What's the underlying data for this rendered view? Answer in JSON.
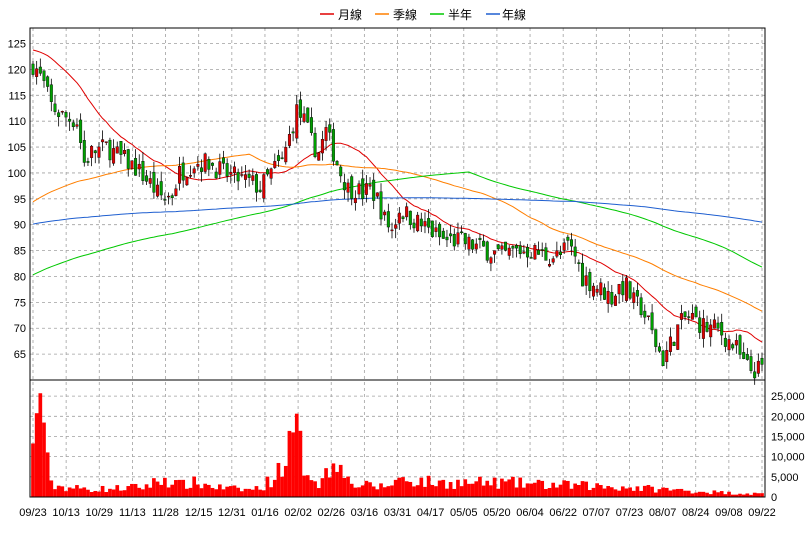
{
  "chart_data": {
    "type": "candlestick",
    "title": "",
    "legend": {
      "placement": "top-center",
      "items": [
        {
          "label": "月線",
          "color": "#e00000"
        },
        {
          "label": "季線",
          "color": "#ff7f00"
        },
        {
          "label": "半年",
          "color": "#00c800"
        },
        {
          "label": "年線",
          "color": "#1f5fd0"
        }
      ]
    },
    "price_axis": {
      "position": "left",
      "ylim": [
        60,
        128
      ],
      "ticks": [
        65,
        70,
        75,
        80,
        85,
        90,
        95,
        100,
        105,
        110,
        115,
        120,
        125
      ]
    },
    "volume_axis": {
      "position": "right",
      "ylim": [
        0,
        29000
      ],
      "ticks": [
        0,
        5000,
        10000,
        15000,
        20000,
        25000
      ],
      "tick_labels": [
        "0",
        "5,000",
        "10,000",
        "15,000",
        "20,000",
        "25,000"
      ]
    },
    "x_tick_labels": [
      "09/23",
      "10/13",
      "10/29",
      "11/13",
      "11/28",
      "12/15",
      "12/31",
      "01/16",
      "02/02",
      "02/26",
      "03/16",
      "03/31",
      "04/17",
      "05/05",
      "05/20",
      "06/04",
      "06/22",
      "07/07",
      "07/23",
      "08/07",
      "08/24",
      "09/08",
      "09/22"
    ],
    "grid": true,
    "colors": {
      "up": "#e00000",
      "down": "#00a000",
      "volume": "#ff0000",
      "grid": "#a0a0a0"
    },
    "price_anchors": [
      [
        0,
        121
      ],
      [
        1,
        120
      ],
      [
        3,
        117
      ],
      [
        5,
        113
      ],
      [
        8,
        111
      ],
      [
        12,
        110
      ],
      [
        14,
        102
      ],
      [
        16,
        104
      ],
      [
        20,
        105
      ],
      [
        24,
        103
      ],
      [
        28,
        101
      ],
      [
        32,
        98
      ],
      [
        34,
        96
      ],
      [
        36,
        95
      ],
      [
        38,
        96
      ],
      [
        40,
        100
      ],
      [
        44,
        102
      ],
      [
        48,
        102
      ],
      [
        52,
        100
      ],
      [
        56,
        99
      ],
      [
        60,
        98
      ],
      [
        62,
        97
      ],
      [
        66,
        101
      ],
      [
        68,
        102
      ],
      [
        70,
        107
      ],
      [
        72,
        112
      ],
      [
        74,
        110
      ],
      [
        76,
        106
      ],
      [
        78,
        104
      ],
      [
        80,
        108
      ],
      [
        82,
        104
      ],
      [
        84,
        100
      ],
      [
        86,
        97
      ],
      [
        88,
        97
      ],
      [
        90,
        96
      ],
      [
        92,
        97
      ],
      [
        94,
        95
      ],
      [
        96,
        91
      ],
      [
        98,
        89
      ],
      [
        100,
        93
      ],
      [
        104,
        91
      ],
      [
        108,
        89
      ],
      [
        112,
        87
      ],
      [
        116,
        87
      ],
      [
        120,
        86
      ],
      [
        124,
        85
      ],
      [
        128,
        84
      ],
      [
        132,
        85
      ],
      [
        136,
        85
      ],
      [
        140,
        84
      ],
      [
        144,
        84
      ],
      [
        146,
        86
      ],
      [
        148,
        84
      ],
      [
        150,
        80
      ],
      [
        152,
        79
      ],
      [
        154,
        78
      ],
      [
        156,
        77
      ],
      [
        158,
        76
      ],
      [
        160,
        78
      ],
      [
        162,
        78
      ],
      [
        164,
        75
      ],
      [
        166,
        74
      ],
      [
        168,
        71
      ],
      [
        170,
        67
      ],
      [
        172,
        64
      ],
      [
        174,
        67
      ],
      [
        176,
        70
      ],
      [
        178,
        72
      ],
      [
        180,
        72
      ],
      [
        184,
        70
      ],
      [
        186,
        70
      ],
      [
        188,
        69
      ],
      [
        192,
        66
      ],
      [
        194,
        63
      ],
      [
        196,
        62
      ],
      [
        198,
        62
      ]
    ],
    "volume_anchors": [
      [
        0,
        11000
      ],
      [
        2,
        29000
      ],
      [
        3,
        19000
      ],
      [
        4,
        8000
      ],
      [
        5,
        3000
      ],
      [
        8,
        2500
      ],
      [
        14,
        2000
      ],
      [
        20,
        2000
      ],
      [
        30,
        2500
      ],
      [
        36,
        4500
      ],
      [
        40,
        3000
      ],
      [
        44,
        3500
      ],
      [
        52,
        2200
      ],
      [
        58,
        1800
      ],
      [
        62,
        2200
      ],
      [
        66,
        5000
      ],
      [
        70,
        12000
      ],
      [
        72,
        16000
      ],
      [
        74,
        8000
      ],
      [
        78,
        3500
      ],
      [
        82,
        8000
      ],
      [
        84,
        12000
      ],
      [
        86,
        4000
      ],
      [
        88,
        3000
      ],
      [
        96,
        2500
      ],
      [
        100,
        4500
      ],
      [
        110,
        3500
      ],
      [
        120,
        3500
      ],
      [
        130,
        3500
      ],
      [
        140,
        3000
      ],
      [
        150,
        2800
      ],
      [
        160,
        2500
      ],
      [
        170,
        2000
      ],
      [
        180,
        1500
      ],
      [
        190,
        1000
      ],
      [
        198,
        800
      ]
    ]
  }
}
